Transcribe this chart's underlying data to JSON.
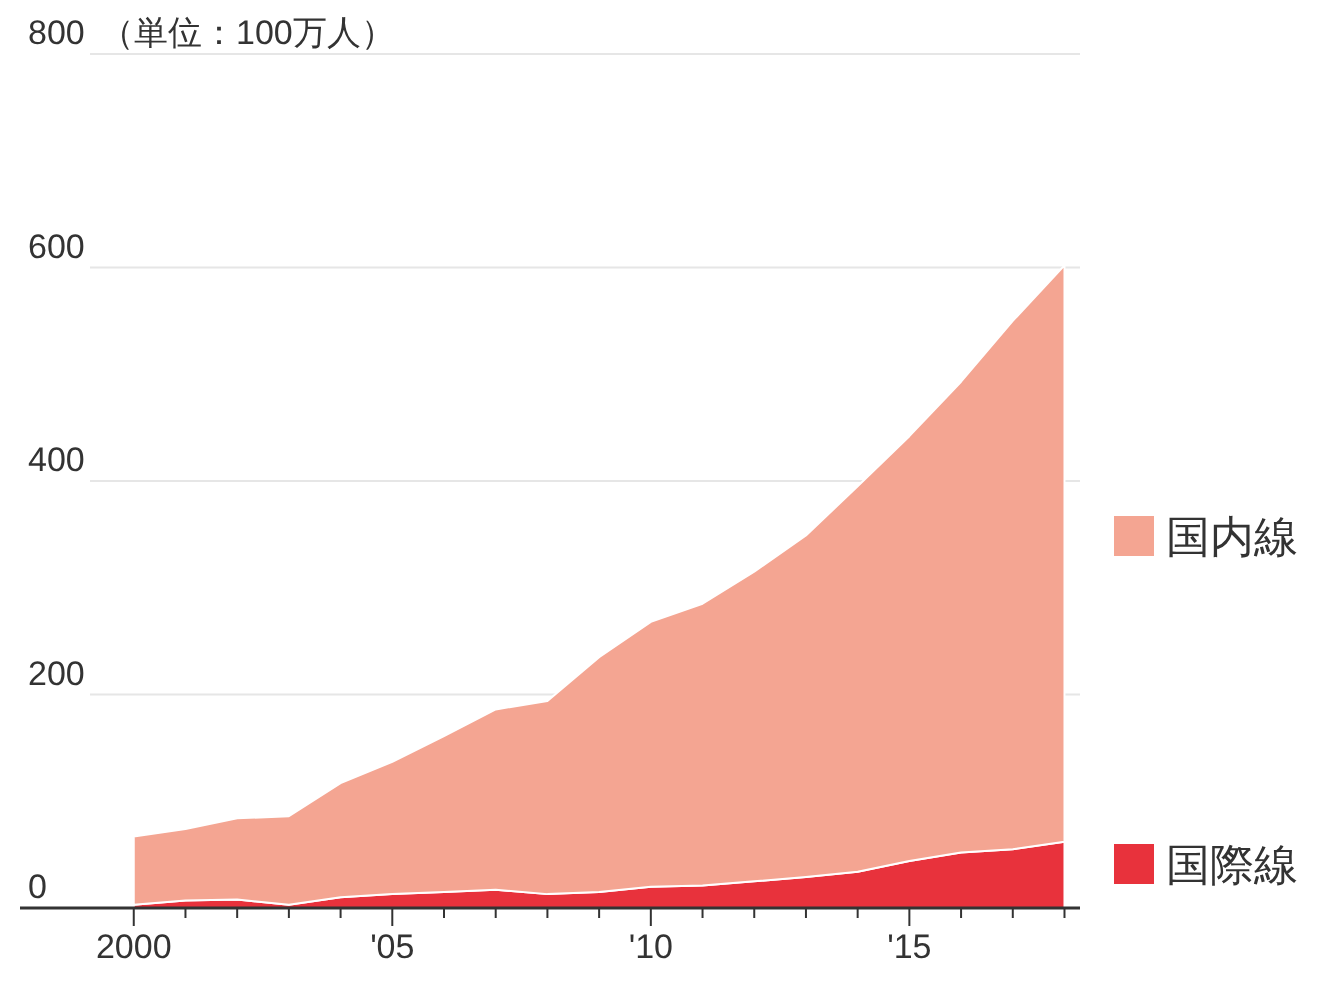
{
  "chart_data": {
    "type": "area",
    "stacked": true,
    "ylabel": "（単位：100万人）",
    "x": [
      2000,
      2001,
      2002,
      2003,
      2004,
      2005,
      2006,
      2007,
      2008,
      2009,
      2010,
      2011,
      2012,
      2013,
      2014,
      2015,
      2016,
      2017,
      2018
    ],
    "series": [
      {
        "name": "国際線",
        "color": "#e8323c",
        "values": [
          3,
          7,
          8,
          3,
          10,
          13,
          15,
          17,
          13,
          15,
          20,
          21,
          25,
          29,
          34,
          44,
          52,
          55,
          62
        ]
      },
      {
        "name": "国内線",
        "color": "#f4a592",
        "values": [
          64,
          67,
          76,
          83,
          107,
          124,
          146,
          169,
          181,
          220,
          248,
          264,
          290,
          320,
          361,
          398,
          441,
          495,
          540
        ]
      }
    ],
    "xlim": [
      1997.8,
      2018.3
    ],
    "xticks": [
      {
        "value": 2000,
        "label": "2000"
      },
      {
        "value": 2001,
        "label": null
      },
      {
        "value": 2002,
        "label": null
      },
      {
        "value": 2003,
        "label": null
      },
      {
        "value": 2004,
        "label": null
      },
      {
        "value": 2005,
        "label": "'05"
      },
      {
        "value": 2006,
        "label": null
      },
      {
        "value": 2007,
        "label": null
      },
      {
        "value": 2008,
        "label": null
      },
      {
        "value": 2009,
        "label": null
      },
      {
        "value": 2010,
        "label": "'10"
      },
      {
        "value": 2011,
        "label": null
      },
      {
        "value": 2012,
        "label": null
      },
      {
        "value": 2013,
        "label": null
      },
      {
        "value": 2014,
        "label": null
      },
      {
        "value": 2015,
        "label": "'15"
      },
      {
        "value": 2016,
        "label": null
      },
      {
        "value": 2017,
        "label": null
      },
      {
        "value": 2018,
        "label": null
      }
    ],
    "ylim": [
      0,
      800
    ],
    "yticks": [
      0,
      200,
      400,
      600,
      800
    ],
    "grid": "y",
    "legend": "right"
  }
}
